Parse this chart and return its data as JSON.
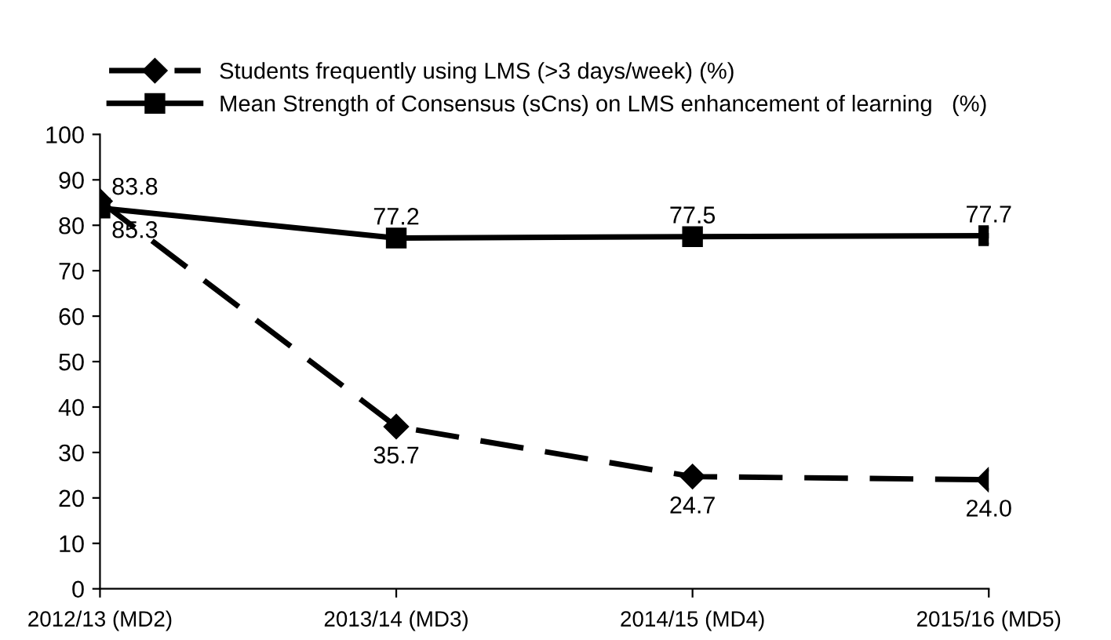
{
  "chart_data": {
    "type": "line",
    "categories": [
      "2012/13 (MD2)",
      "2013/14 (MD3)",
      "2014/15 (MD4)",
      "2015/16 (MD5)"
    ],
    "series": [
      {
        "name": "Students frequently using LMS (>3 days/week) (%)",
        "color": "#000000",
        "marker": "diamond",
        "line_style": "dashed",
        "values": [
          85.3,
          35.7,
          24.7,
          24.0
        ],
        "value_labels": [
          "85.3",
          "35.7",
          "24.7",
          "24.0"
        ]
      },
      {
        "name": "Mean Strength of Consensus (sCns) on LMS enhancement of learning   (%)",
        "color": "#000000",
        "marker": "square",
        "line_style": "solid",
        "values": [
          83.8,
          77.2,
          77.5,
          77.7
        ],
        "value_labels": [
          "83.8",
          "77.2",
          "77.5",
          "77.7"
        ]
      }
    ],
    "ylim": [
      0,
      100
    ],
    "yticks": [
      0,
      10,
      20,
      30,
      40,
      50,
      60,
      70,
      80,
      90,
      100
    ],
    "grid": false,
    "legend": "top"
  }
}
